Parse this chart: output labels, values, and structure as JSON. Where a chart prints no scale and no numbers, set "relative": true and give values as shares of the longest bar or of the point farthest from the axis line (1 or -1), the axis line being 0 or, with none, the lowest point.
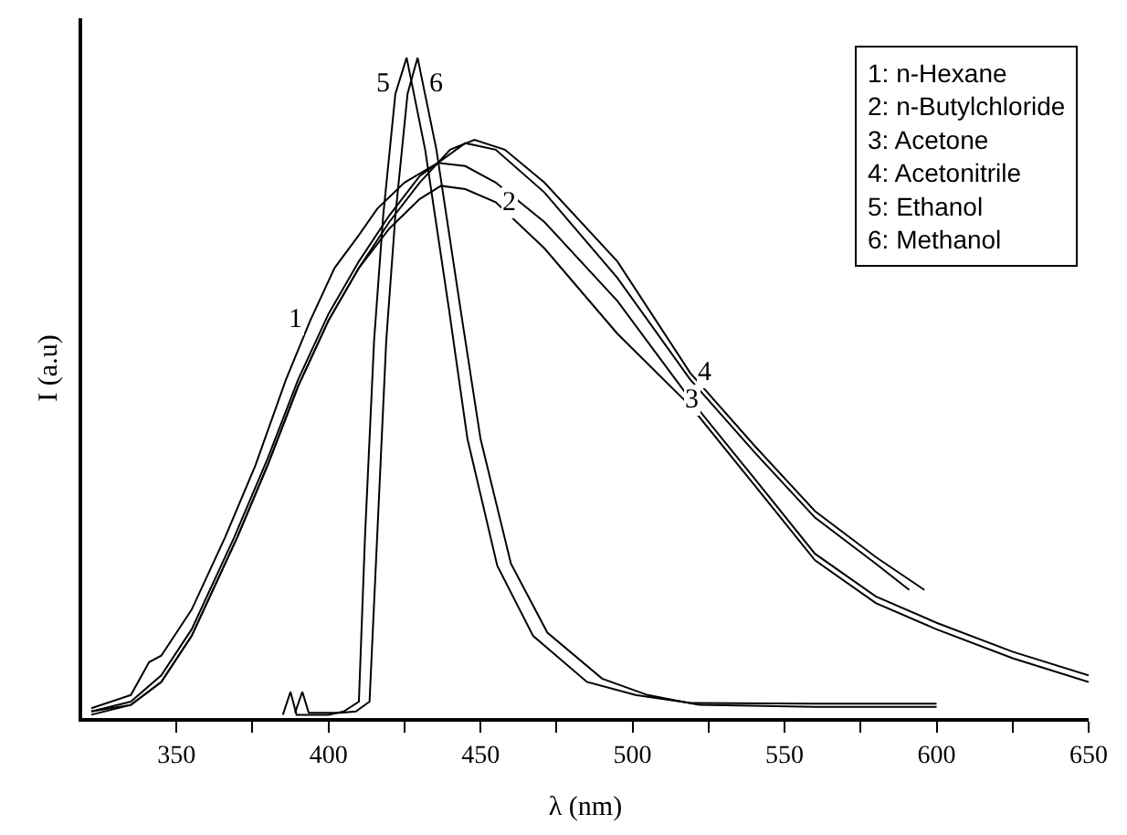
{
  "chart_data": {
    "type": "line",
    "relative": true,
    "xlabel": "λ (nm)",
    "ylabel": "I (a.u)",
    "xlim": [
      319,
      650
    ],
    "xticks": [
      350,
      {
        "value": 375,
        "label": null
      },
      400,
      {
        "value": 425,
        "label": null
      },
      450,
      {
        "value": 475,
        "label": null
      },
      500,
      {
        "value": 525,
        "label": null
      },
      550,
      {
        "value": 575,
        "label": null
      },
      600,
      {
        "value": 625,
        "label": null
      },
      650
    ],
    "marker": "none",
    "line_style": "solid",
    "series": [
      {
        "color": "#000000",
        "x": [
          322,
          335,
          341,
          345,
          355,
          366,
          376,
          386,
          394,
          402,
          410,
          416,
          425,
          436,
          445,
          455,
          471,
          495,
          519,
          540,
          560,
          580,
          600,
          625,
          650
        ],
        "values": [
          0.01,
          0.03,
          0.08,
          0.09,
          0.16,
          0.27,
          0.38,
          0.51,
          0.6,
          0.68,
          0.73,
          0.77,
          0.81,
          0.84,
          0.835,
          0.81,
          0.75,
          0.63,
          0.48,
          0.36,
          0.245,
          0.18,
          0.14,
          0.096,
          0.06
        ]
      },
      {
        "color": "#000000",
        "x": [
          322,
          335,
          345,
          355,
          370,
          380,
          390,
          400,
          410,
          420,
          430,
          437,
          445,
          455,
          471,
          495,
          519,
          540,
          560,
          580,
          600,
          625,
          650
        ],
        "values": [
          0,
          0.015,
          0.05,
          0.12,
          0.27,
          0.38,
          0.5,
          0.6,
          0.68,
          0.74,
          0.785,
          0.805,
          0.8,
          0.78,
          0.71,
          0.58,
          0.47,
          0.35,
          0.235,
          0.17,
          0.13,
          0.086,
          0.05
        ]
      },
      {
        "color": "#000000",
        "x": [
          322,
          335,
          345,
          355,
          369,
          380,
          390,
          400,
          410,
          420,
          430,
          445,
          455,
          471,
          495,
          519,
          540,
          560,
          580,
          591
        ],
        "values": [
          0.005,
          0.02,
          0.06,
          0.13,
          0.27,
          0.39,
          0.51,
          0.61,
          0.69,
          0.76,
          0.82,
          0.87,
          0.86,
          0.795,
          0.665,
          0.51,
          0.4,
          0.3,
          0.23,
          0.19
        ]
      },
      {
        "color": "#000000",
        "x": [
          322,
          335,
          345,
          355,
          370,
          380,
          390,
          400,
          410,
          420,
          430,
          440,
          448,
          458,
          471,
          495,
          519,
          540,
          560,
          580,
          596
        ],
        "values": [
          0.005,
          0.015,
          0.05,
          0.12,
          0.27,
          0.38,
          0.5,
          0.6,
          0.68,
          0.75,
          0.81,
          0.86,
          0.875,
          0.86,
          0.81,
          0.69,
          0.52,
          0.41,
          0.31,
          0.24,
          0.19
        ]
      },
      {
        "color": "#000000",
        "x": [
          385,
          387.5,
          389.5,
          400,
          405,
          410,
          412,
          415,
          418,
          422,
          425.7,
          431.8,
          439.7,
          445.7,
          455.5,
          467.3,
          485,
          501,
          519,
          560,
          600
        ],
        "values": [
          0,
          0.035,
          0,
          0,
          0.005,
          0.02,
          0.27,
          0.57,
          0.76,
          0.945,
          1,
          0.86,
          0.615,
          0.42,
          0.227,
          0.12,
          0.05,
          0.03,
          0.018,
          0.017,
          0.017
        ]
      },
      {
        "color": "#000000",
        "x": [
          389,
          391.4,
          393.5,
          404,
          409,
          413.5,
          416,
          419,
          422,
          426,
          429.3,
          435.5,
          443.5,
          450,
          460,
          472,
          490,
          505,
          522,
          560,
          600
        ],
        "values": [
          0.003,
          0.035,
          0.003,
          0.003,
          0.005,
          0.02,
          0.27,
          0.57,
          0.76,
          0.945,
          1,
          0.86,
          0.615,
          0.42,
          0.23,
          0.125,
          0.055,
          0.03,
          0.015,
          0.012,
          0.012
        ]
      }
    ],
    "annotations": [
      {
        "text": "1",
        "x": 394,
        "y": 0.6
      },
      {
        "text": "2",
        "x": 455,
        "y": 0.78
      },
      {
        "text": "3",
        "x": 515,
        "y": 0.48
      },
      {
        "text": "4",
        "x": 519,
        "y": 0.52
      },
      {
        "text": "5",
        "x": 423,
        "y": 0.96
      },
      {
        "text": "6",
        "x": 431,
        "y": 0.96
      },
      "1: n-Hexane",
      "2: n-Butylchloride",
      "3: Acetone",
      "4: Acetonitrile",
      "5: Ethanol",
      "6: Methanol"
    ]
  }
}
